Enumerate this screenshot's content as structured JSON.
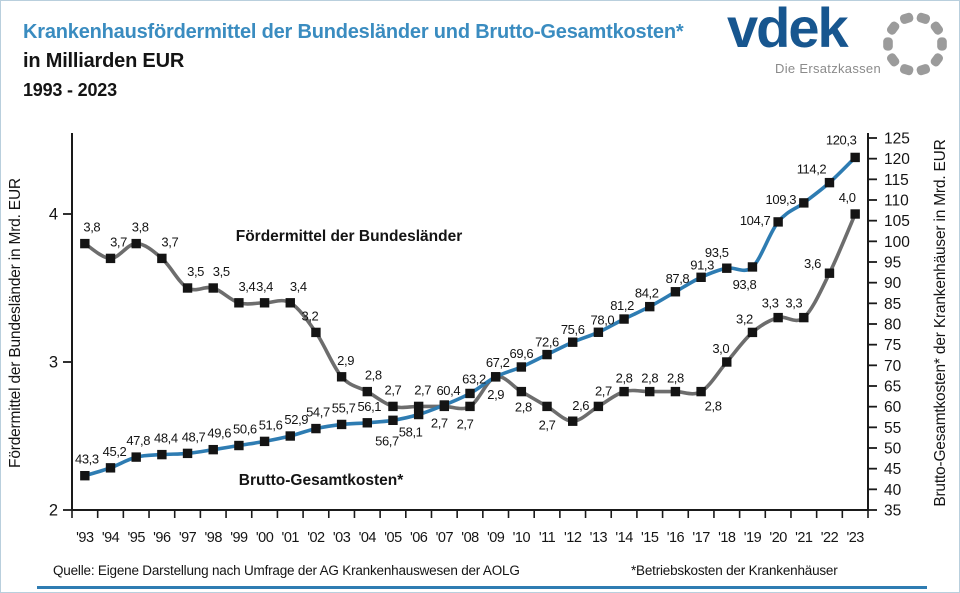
{
  "header": {
    "title": "Krankenhausfördermittel der Bundesländer und Brutto-Gesamtkosten*",
    "subtitle": "in Milliarden EUR",
    "period": "1993 - 2023"
  },
  "logo": {
    "wordmark": "vdek",
    "tagline": "Die Ersatzkassen"
  },
  "footer": {
    "source": "Quelle: Eigene Darstellung nach Umfrage der AG Krankenhauswesen der AOLG",
    "footnote": "*Betriebskosten der Krankenhäuser"
  },
  "colors": {
    "title_blue": "#3a8cc0",
    "accent_blue": "#2e7cb2",
    "line_gray": "#6d6d6d",
    "marker_black": "#141414",
    "text_black": "#1a1a1a",
    "logo_navy": "#17568f",
    "logo_ring_gray": "#9b9b9b",
    "tagline_gray": "#8b8b8b",
    "border_light": "#b9cfdd"
  },
  "chart_data": {
    "type": "line",
    "title": "Krankenhausfördermittel der Bundesländer und Brutto-Gesamtkosten* in Milliarden EUR 1993 - 2023",
    "x_labels": [
      "'93",
      "'94",
      "'95",
      "'96",
      "'97",
      "'98",
      "'99",
      "'00",
      "'01",
      "'02",
      "'03",
      "'04",
      "'05",
      "'06",
      "'07",
      "'08",
      "'09",
      "'10",
      "'11",
      "'12",
      "'13",
      "'14",
      "'15",
      "'16",
      "'17",
      "'18",
      "'19",
      "'20",
      "'21",
      "'22",
      "'23"
    ],
    "series": [
      {
        "name": "Fördermittel der Bundesländer",
        "axis": "left",
        "color": "#6d6d6d",
        "marker": "black-square",
        "values": [
          3.8,
          3.7,
          3.8,
          3.7,
          3.5,
          3.5,
          3.4,
          3.4,
          3.4,
          3.2,
          2.9,
          2.8,
          2.7,
          2.7,
          2.7,
          2.7,
          2.9,
          2.8,
          2.7,
          2.6,
          2.7,
          2.8,
          2.8,
          2.8,
          2.8,
          3.0,
          3.2,
          3.3,
          3.3,
          3.6,
          4.0
        ]
      },
      {
        "name": "Brutto-Gesamtkosten*",
        "axis": "right",
        "color": "#2e7cb2",
        "marker": "black-square",
        "values": [
          43.3,
          45.2,
          47.8,
          48.4,
          48.7,
          49.6,
          50.6,
          51.6,
          52.9,
          54.7,
          55.7,
          56.1,
          56.7,
          58.1,
          60.4,
          63.2,
          67.2,
          69.6,
          72.6,
          75.6,
          78.0,
          81.2,
          84.2,
          87.8,
          91.3,
          93.5,
          93.8,
          104.7,
          109.3,
          114.2,
          120.3
        ]
      }
    ],
    "left_axis": {
      "title": "Fördermittel der Bundesländer in Mrd. EUR",
      "min": 2,
      "max": 4,
      "ticks": [
        2,
        3,
        4
      ]
    },
    "right_axis": {
      "title": "Brutto-Gesamtkosten* der Krankenhäuser in Mrd. EUR",
      "min": 35,
      "max": 125,
      "ticks": [
        35,
        40,
        45,
        50,
        55,
        60,
        65,
        70,
        75,
        80,
        85,
        90,
        95,
        100,
        105,
        110,
        115,
        120,
        125
      ]
    },
    "grid": false,
    "legend": "inline-labels",
    "decimal_separator": ","
  }
}
